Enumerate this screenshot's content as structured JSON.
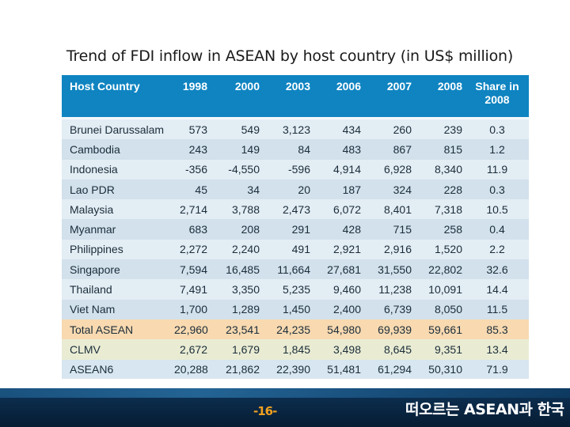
{
  "title": "Trend of FDI inflow in ASEAN by host country (in US$ million)",
  "table": {
    "headers": [
      "Host Country",
      "1998",
      "2000",
      "2003",
      "2006",
      "2007",
      "2008",
      "Share in 2008"
    ],
    "rows": [
      [
        "Brunei Darussalam",
        "573",
        "549",
        "3,123",
        "434",
        "260",
        "239",
        "0.3"
      ],
      [
        "Cambodia",
        "243",
        "149",
        "84",
        "483",
        "867",
        "815",
        "1.2"
      ],
      [
        "Indonesia",
        "-356",
        "-4,550",
        "-596",
        "4,914",
        "6,928",
        "8,340",
        "11.9"
      ],
      [
        "Lao PDR",
        "45",
        "34",
        "20",
        "187",
        "324",
        "228",
        "0.3"
      ],
      [
        "Malaysia",
        "2,714",
        "3,788",
        "2,473",
        "6,072",
        "8,401",
        "7,318",
        "10.5"
      ],
      [
        "Myanmar",
        "683",
        "208",
        "291",
        "428",
        "715",
        "258",
        "0.4"
      ],
      [
        "Philippines",
        "2,272",
        "2,240",
        "491",
        "2,921",
        "2,916",
        "1,520",
        "2.2"
      ],
      [
        "Singapore",
        "7,594",
        "16,485",
        "11,664",
        "27,681",
        "31,550",
        "22,802",
        "32.6"
      ],
      [
        "Thailand",
        "7,491",
        "3,350",
        "5,235",
        "9,460",
        "11,238",
        "10,091",
        "14.4"
      ],
      [
        "Viet Nam",
        "1,700",
        "1,289",
        "1,450",
        "2,400",
        "6,739",
        "8,050",
        "11.5"
      ],
      [
        "Total ASEAN",
        "22,960",
        "23,541",
        "24,235",
        "54,980",
        "69,939",
        "59,661",
        "85.3"
      ],
      [
        "CLMV",
        "2,672",
        "1,679",
        "1,845",
        "3,498",
        "8,645",
        "9,351",
        "13.4"
      ],
      [
        "ASEAN6",
        "20,288",
        "21,862",
        "22,390",
        "51,481",
        "61,294",
        "50,310",
        "71.9"
      ]
    ]
  },
  "footer": {
    "page_number": "-16-",
    "brand_text": "떠오르는 ASEAN과 한국"
  },
  "colors": {
    "header_bg": "#0f84c1",
    "total_row_bg": "#f8d9b0",
    "clmv_row_bg": "#e9ecd3",
    "footer_bg": "#0a2846",
    "page_number_color": "#f0a020"
  }
}
